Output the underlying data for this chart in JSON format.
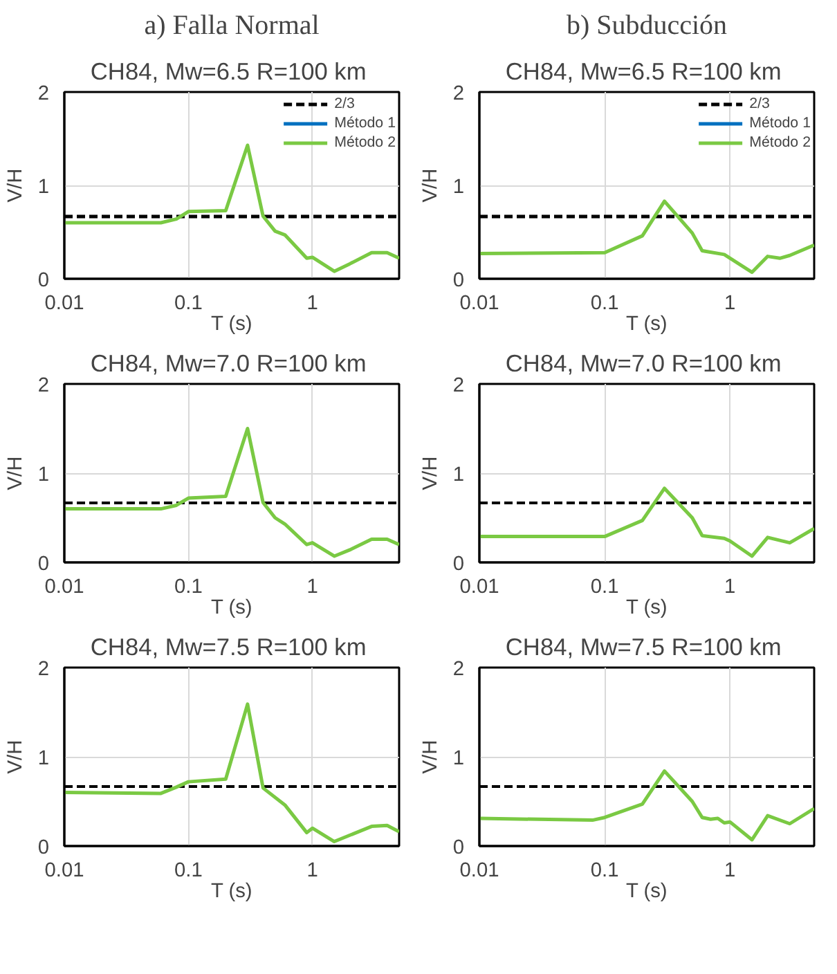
{
  "chart_data": [
    {
      "type": "line",
      "subtitle": "a) Falla Normal",
      "title": "CH84, Mw=6.5  R=100 km",
      "xlabel": "T (s)",
      "ylabel": "V/H",
      "log": "x",
      "xlim": [
        0.01,
        5
      ],
      "xticks": [
        0.01,
        0.1,
        1
      ],
      "ylim": [
        0,
        2
      ],
      "yticks": [
        0,
        1,
        2
      ],
      "grid": true,
      "legend": "top right",
      "x": [
        0.01,
        0.06,
        0.08,
        0.1,
        0.2,
        0.3,
        0.4,
        0.5,
        0.6,
        0.9,
        1.0,
        1.5,
        2,
        3,
        4,
        5
      ],
      "series": [
        {
          "name": "2/3",
          "type": "line",
          "line_style": "dashed",
          "color": "#000000",
          "x": [
            0.01,
            5
          ],
          "values": [
            0.667,
            0.667
          ]
        },
        {
          "name": "Método 1",
          "color": "#0070c0",
          "values": [
            null,
            null,
            null,
            null,
            null,
            null,
            null,
            null,
            null,
            null,
            null,
            null,
            null,
            null,
            null,
            null
          ]
        },
        {
          "name": "Método 2",
          "color": "#7ac943",
          "values": [
            0.6,
            0.6,
            0.64,
            0.72,
            0.73,
            1.43,
            0.67,
            0.51,
            0.47,
            0.22,
            0.23,
            0.08,
            0.16,
            0.28,
            0.28,
            0.22
          ]
        }
      ]
    },
    {
      "type": "line",
      "subtitle": "b) Subducción",
      "title": "CH84, Mw=6.5  R=100 km",
      "xlabel": "T (s)",
      "ylabel": "V/H",
      "log": "x",
      "xlim": [
        0.01,
        4.7
      ],
      "xticks": [
        0.01,
        0.1,
        1
      ],
      "ylim": [
        0,
        2
      ],
      "yticks": [
        0,
        1,
        2
      ],
      "grid": true,
      "legend": "top right",
      "x": [
        0.01,
        0.1,
        0.2,
        0.3,
        0.5,
        0.6,
        0.9,
        1.5,
        2,
        2.5,
        3,
        4.7
      ],
      "series": [
        {
          "name": "2/3",
          "type": "line",
          "line_style": "dashed",
          "color": "#000000",
          "x": [
            0.01,
            4.7
          ],
          "values": [
            0.667,
            0.667
          ]
        },
        {
          "name": "Método 1",
          "color": "#0070c0",
          "values": [
            null,
            null,
            null,
            null,
            null,
            null,
            null,
            null,
            null,
            null,
            null,
            null
          ]
        },
        {
          "name": "Método 2",
          "color": "#7ac943",
          "values": [
            0.27,
            0.28,
            0.46,
            0.83,
            0.49,
            0.3,
            0.26,
            0.07,
            0.24,
            0.22,
            0.25,
            0.36
          ]
        }
      ]
    },
    {
      "type": "line",
      "title": "CH84, Mw=7.0  R=100 km",
      "xlabel": "T (s)",
      "ylabel": "V/H",
      "log": "x",
      "xlim": [
        0.01,
        5
      ],
      "xticks": [
        0.01,
        0.1,
        1
      ],
      "ylim": [
        0,
        2
      ],
      "yticks": [
        0,
        1,
        2
      ],
      "grid": true,
      "x": [
        0.01,
        0.06,
        0.08,
        0.1,
        0.2,
        0.3,
        0.4,
        0.5,
        0.6,
        0.9,
        1.0,
        1.5,
        2,
        3,
        4,
        5
      ],
      "ref_lines": [
        {
          "axis": "y",
          "value": 0.667,
          "color": "#000000",
          "line_style": "dashed"
        }
      ],
      "series": [
        {
          "color": "#7ac943",
          "values": [
            0.6,
            0.6,
            0.64,
            0.72,
            0.74,
            1.5,
            0.67,
            0.5,
            0.43,
            0.2,
            0.22,
            0.07,
            0.14,
            0.26,
            0.26,
            0.2
          ]
        }
      ]
    },
    {
      "type": "line",
      "title": "CH84, Mw=7.0  R=100 km",
      "xlabel": "T (s)",
      "ylabel": "V/H",
      "log": "x",
      "xlim": [
        0.01,
        4.7
      ],
      "xticks": [
        0.01,
        0.1,
        1
      ],
      "ylim": [
        0,
        2
      ],
      "yticks": [
        0,
        1,
        2
      ],
      "grid": true,
      "x": [
        0.01,
        0.1,
        0.2,
        0.3,
        0.5,
        0.6,
        0.9,
        1.0,
        1.5,
        2,
        3,
        4.7
      ],
      "ref_lines": [
        {
          "axis": "y",
          "value": 0.667,
          "color": "#000000",
          "line_style": "dashed"
        }
      ],
      "series": [
        {
          "color": "#7ac943",
          "values": [
            0.29,
            0.29,
            0.47,
            0.83,
            0.5,
            0.3,
            0.27,
            0.24,
            0.07,
            0.28,
            0.22,
            0.38
          ]
        }
      ]
    },
    {
      "type": "line",
      "title": "CH84, Mw=7.5  R=100 km",
      "xlabel": "T (s)",
      "ylabel": "V/H",
      "log": "x",
      "xlim": [
        0.01,
        5
      ],
      "xticks": [
        0.01,
        0.1,
        1
      ],
      "ylim": [
        0,
        2
      ],
      "yticks": [
        0,
        1,
        2
      ],
      "grid": true,
      "x": [
        0.01,
        0.06,
        0.08,
        0.1,
        0.2,
        0.3,
        0.4,
        0.6,
        0.9,
        1.0,
        1.5,
        3,
        4,
        5
      ],
      "ref_lines": [
        {
          "axis": "y",
          "value": 0.667,
          "color": "#000000",
          "line_style": "dashed"
        }
      ],
      "series": [
        {
          "color": "#7ac943",
          "values": [
            0.6,
            0.59,
            0.66,
            0.72,
            0.75,
            1.59,
            0.65,
            0.46,
            0.15,
            0.2,
            0.05,
            0.22,
            0.23,
            0.16
          ]
        }
      ]
    },
    {
      "type": "line",
      "title": "CH84, Mw=7.5  R=100 km",
      "xlabel": "T (s)",
      "ylabel": "V/H",
      "log": "x",
      "xlim": [
        0.01,
        4.7
      ],
      "xticks": [
        0.01,
        0.1,
        1
      ],
      "ylim": [
        0,
        2
      ],
      "yticks": [
        0,
        1,
        2
      ],
      "grid": true,
      "x": [
        0.01,
        0.08,
        0.1,
        0.2,
        0.3,
        0.5,
        0.6,
        0.7,
        0.8,
        0.9,
        1.0,
        1.5,
        2,
        3,
        4.7
      ],
      "ref_lines": [
        {
          "axis": "y",
          "value": 0.667,
          "color": "#000000",
          "line_style": "dashed"
        }
      ],
      "series": [
        {
          "color": "#7ac943",
          "values": [
            0.31,
            0.29,
            0.32,
            0.47,
            0.84,
            0.5,
            0.32,
            0.3,
            0.31,
            0.26,
            0.27,
            0.07,
            0.34,
            0.25,
            0.42
          ]
        }
      ]
    }
  ]
}
